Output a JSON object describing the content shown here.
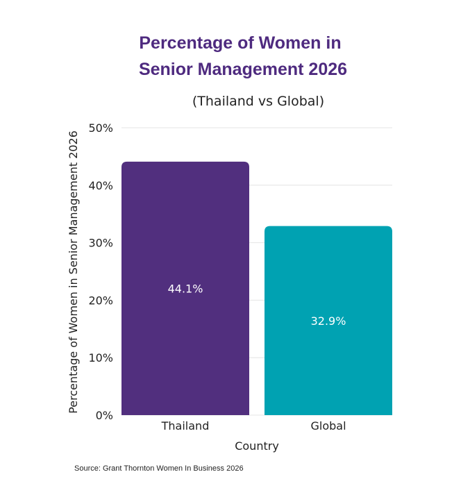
{
  "chart_data": {
    "type": "bar",
    "title_lines": [
      "Percentage of Women in",
      "Senior Management 2026"
    ],
    "subtitle": "(Thailand vs Global)",
    "xlabel": "Country",
    "ylabel": "Percentage of Women in Senior Management 2026",
    "categories": [
      "Thailand",
      "Global"
    ],
    "values": [
      44.1,
      32.9
    ],
    "value_labels": [
      "44.1%",
      "32.9%"
    ],
    "bar_colors": [
      "#512f7e",
      "#00a2b2"
    ],
    "ylim": [
      0,
      50
    ],
    "yticks": [
      0,
      10,
      20,
      30,
      40,
      50
    ],
    "ytick_labels": [
      "0%",
      "10%",
      "20%",
      "30%",
      "40%",
      "50%"
    ],
    "grid": true,
    "source": "Source: Grant Thornton Women In Business 2026"
  },
  "colors": {
    "title": "#4e2a7f",
    "grid": "#e4e4e4"
  }
}
